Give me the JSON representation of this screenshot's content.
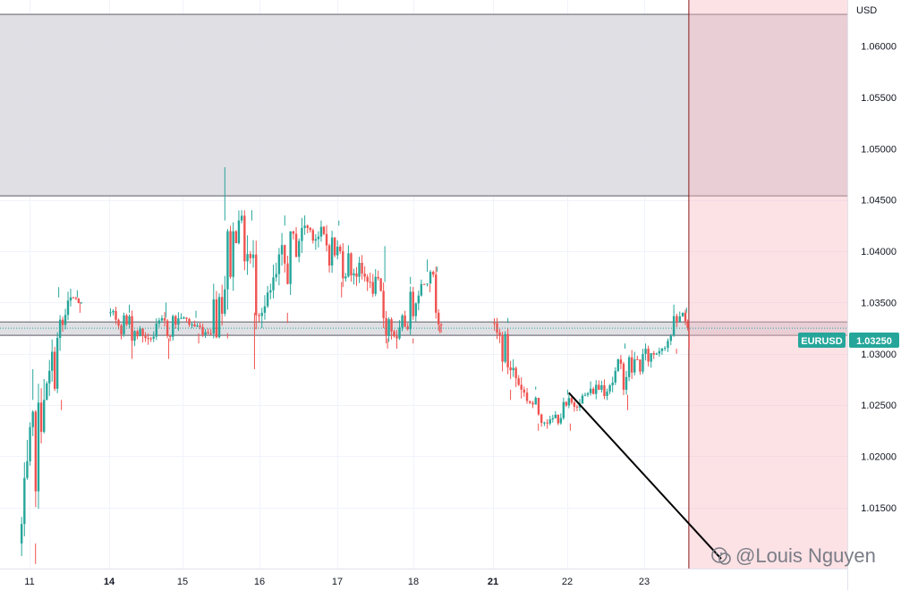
{
  "chart_data": {
    "type": "candlestick",
    "symbol": "EURUSD",
    "currency": "USD",
    "last_price": 1.0325,
    "last_price_label": "1.03250",
    "y_range": [
      1.00905,
      1.06451
    ],
    "y_ticks": [
      {
        "value": 1.06,
        "label": "1.06000"
      },
      {
        "value": 1.055,
        "label": "1.05500"
      },
      {
        "value": 1.05,
        "label": "1.05000"
      },
      {
        "value": 1.045,
        "label": "1.04500"
      },
      {
        "value": 1.04,
        "label": "1.04000"
      },
      {
        "value": 1.035,
        "label": "1.03500"
      },
      {
        "value": 1.03,
        "label": "1.03000"
      },
      {
        "value": 1.025,
        "label": "1.02500"
      },
      {
        "value": 1.02,
        "label": "1.02000"
      },
      {
        "value": 1.015,
        "label": "1.01500"
      }
    ],
    "x_range": [
      10.65,
      24.0
    ],
    "x_ticks": [
      {
        "value": 11,
        "label": "11",
        "bold": false
      },
      {
        "value": 14,
        "label": "14",
        "bold": true
      },
      {
        "value": 15,
        "label": "15",
        "bold": false
      },
      {
        "value": 16,
        "label": "16",
        "bold": false
      },
      {
        "value": 17,
        "label": "17",
        "bold": false
      },
      {
        "value": 18,
        "label": "18",
        "bold": false
      },
      {
        "value": 21,
        "label": "21",
        "bold": true
      },
      {
        "value": 22,
        "label": "22",
        "bold": false
      },
      {
        "value": 23,
        "label": "23",
        "bold": false
      }
    ],
    "grid": true,
    "colors": {
      "up": "#26a69a",
      "down": "#ef5350",
      "tag": "#26a69a"
    },
    "zones": [
      {
        "name": "upper-resistance-zone",
        "from": 1.0454,
        "to": 1.0631,
        "color": "#dcdce2"
      },
      {
        "name": "mid-support-zone",
        "from": 1.0318,
        "to": 1.0331,
        "color": "#dcdce2"
      }
    ],
    "vertical_marker_date": 23.58,
    "trendline": {
      "from": {
        "x": 22.02,
        "y": 1.0262
      },
      "to": {
        "x": 24.0,
        "y": 1.01
      }
    },
    "segments": [
      {
        "x0": 10.65,
        "x1": 11.6,
        "open": 1.0115,
        "close": 1.0255,
        "high": 1.0285,
        "low": 1.0095
      },
      {
        "x0": 11.6,
        "x1": 12.6,
        "open": 1.0255,
        "close": 1.0355,
        "high": 1.0365,
        "low": 1.0245
      },
      {
        "x0": 12.6,
        "x1": 13.0,
        "open": 1.0355,
        "close": 1.035,
        "high": 1.0362,
        "low": 1.034
      },
      {
        "x0": 14.0,
        "x1": 14.55,
        "open": 1.034,
        "close": 1.0315,
        "high": 1.0348,
        "low": 1.0295
      },
      {
        "x0": 14.55,
        "x1": 15.0,
        "open": 1.0315,
        "close": 1.0335,
        "high": 1.035,
        "low": 1.0295
      },
      {
        "x0": 15.0,
        "x1": 15.35,
        "open": 1.0335,
        "close": 1.032,
        "high": 1.0342,
        "low": 1.031
      },
      {
        "x0": 15.35,
        "x1": 15.75,
        "open": 1.032,
        "close": 1.043,
        "high": 1.0482,
        "low": 1.0315
      },
      {
        "x0": 15.75,
        "x1": 16.05,
        "open": 1.043,
        "close": 1.034,
        "high": 1.044,
        "low": 1.0285
      },
      {
        "x0": 16.05,
        "x1": 16.6,
        "open": 1.034,
        "close": 1.0425,
        "high": 1.0435,
        "low": 1.033
      },
      {
        "x0": 16.6,
        "x1": 17.45,
        "open": 1.0425,
        "close": 1.037,
        "high": 1.043,
        "low": 1.0355
      },
      {
        "x0": 17.45,
        "x1": 17.8,
        "open": 1.037,
        "close": 1.0315,
        "high": 1.0405,
        "low": 1.0305
      },
      {
        "x0": 17.8,
        "x1": 18.35,
        "open": 1.0315,
        "close": 1.0368,
        "high": 1.0375,
        "low": 1.031
      },
      {
        "x0": 18.35,
        "x1": 18.7,
        "open": 1.0368,
        "close": 1.038,
        "high": 1.0392,
        "low": 1.036
      },
      {
        "x0": 18.7,
        "x1": 19.1,
        "open": 1.038,
        "close": 1.0328,
        "high": 1.0385,
        "low": 1.032
      },
      {
        "x0": 21.0,
        "x1": 21.4,
        "open": 1.033,
        "close": 1.0265,
        "high": 1.0335,
        "low": 1.0255
      },
      {
        "x0": 21.4,
        "x1": 21.75,
        "open": 1.0265,
        "close": 1.0232,
        "high": 1.0268,
        "low": 1.0225
      },
      {
        "x0": 21.75,
        "x1": 22.25,
        "open": 1.0232,
        "close": 1.026,
        "high": 1.0265,
        "low": 1.0225
      },
      {
        "x0": 22.25,
        "x1": 23.25,
        "open": 1.026,
        "close": 1.0305,
        "high": 1.031,
        "low": 1.0245
      },
      {
        "x0": 23.25,
        "x1": 23.52,
        "open": 1.0305,
        "close": 1.034,
        "high": 1.0348,
        "low": 1.03
      },
      {
        "x0": 23.52,
        "x1": 23.58,
        "open": 1.034,
        "close": 1.0325,
        "high": 1.0345,
        "low": 1.0305
      }
    ]
  },
  "watermark": {
    "icon": "wechat-icon",
    "text": "@Louis Nguyen"
  }
}
